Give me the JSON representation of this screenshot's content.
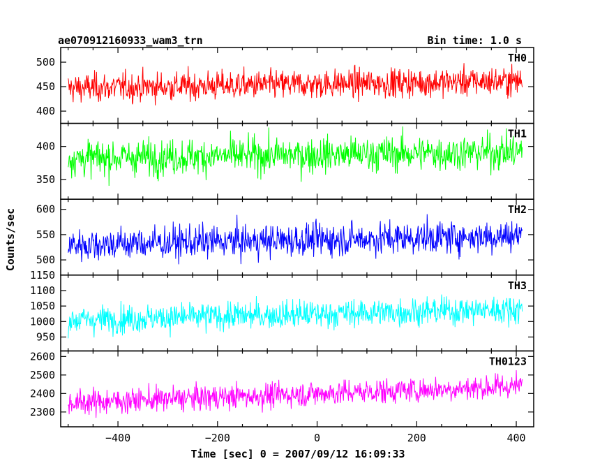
{
  "chart_data": {
    "type": "line",
    "title": "ae070912160933_wam3_trn",
    "subtitle": "Bin time: 1.0 s",
    "xlabel": "Time [sec] 0 = 2007/09/12 16:09:33",
    "ylabel": "Counts/sec",
    "xlim": [
      -515,
      435
    ],
    "xticks": [
      -400,
      -200,
      0,
      200,
      400
    ],
    "x_range": [
      -500,
      412
    ],
    "grid": false,
    "panels": [
      {
        "name": "TH0",
        "color": "#ff0000",
        "ylim": [
          375,
          530
        ],
        "yticks": [
          400,
          450,
          500
        ],
        "mean_start": 447,
        "mean_end": 462,
        "noise": 21
      },
      {
        "name": "TH1",
        "color": "#00ff00",
        "ylim": [
          320,
          435
        ],
        "yticks": [
          350,
          400
        ],
        "mean_start": 382,
        "mean_end": 392,
        "noise": 19
      },
      {
        "name": "TH2",
        "color": "#0000ff",
        "ylim": [
          470,
          620
        ],
        "yticks": [
          500,
          550,
          600
        ],
        "mean_start": 530,
        "mean_end": 548,
        "noise": 23
      },
      {
        "name": "TH3",
        "color": "#00ffff",
        "ylim": [
          905,
          1150
        ],
        "yticks": [
          950,
          1000,
          1050,
          1100,
          1150
        ],
        "mean_start": 1005,
        "mean_end": 1040,
        "noise": 32
      },
      {
        "name": "TH0123",
        "color": "#ff00ff",
        "ylim": [
          2220,
          2630
        ],
        "yticks": [
          2300,
          2400,
          2500,
          2600
        ],
        "mean_start": 2350,
        "mean_end": 2440,
        "noise": 48
      }
    ]
  }
}
